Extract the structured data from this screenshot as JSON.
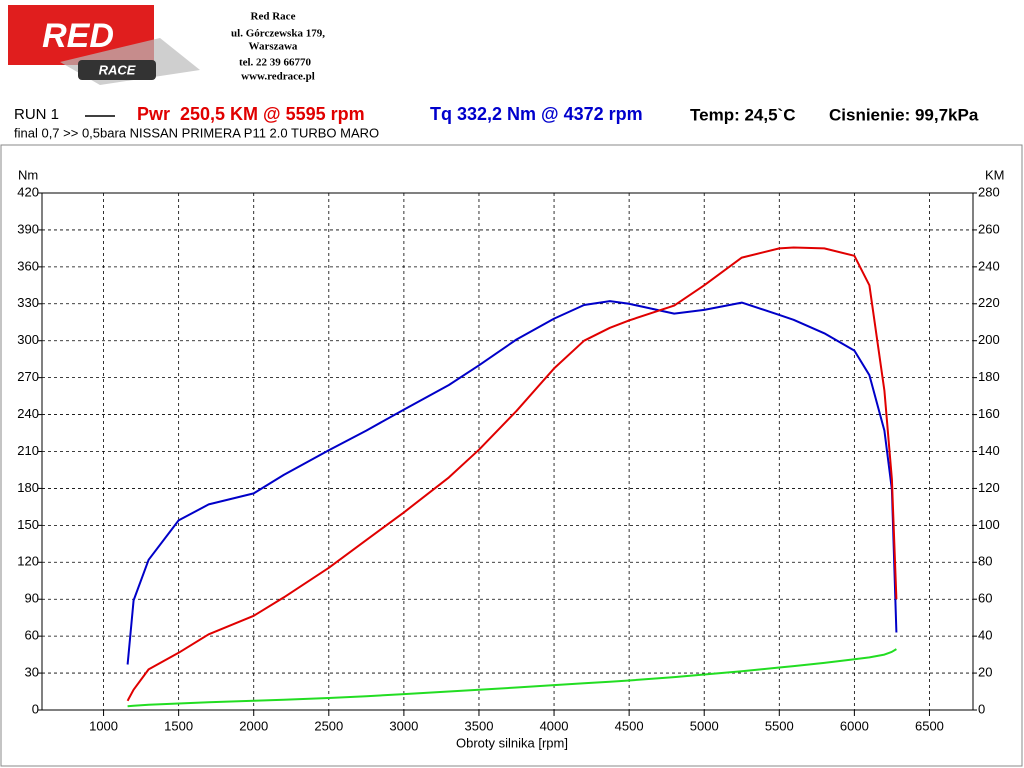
{
  "header": {
    "company": "Red Race",
    "address": "ul. Górczewska 179,",
    "city": "Warszawa",
    "phone": "tel. 22 39 66770",
    "web": "www.redrace.pl",
    "logo_top": "RED",
    "logo_bottom": "RACE"
  },
  "chart_data": {
    "type": "line",
    "run_label": "RUN 1",
    "power_label": "Pwr  250,5 KM @ 5595 rpm",
    "torque_label": "Tq 332,2 Nm @ 4372 rpm",
    "temp_label": "Temp: 24,5`C",
    "pressure_label": "Cisnienie: 99,7kPa",
    "subtitle": "final 0,7 >> 0,5bara NISSAN PRIMERA P11 2.0 TURBO MARO",
    "xlabel": "Obroty silnika [rpm]",
    "ylabel": "Nm",
    "y2label": "KM",
    "x": [
      1160,
      1200,
      1300,
      1500,
      1700,
      2000,
      2200,
      2500,
      2750,
      3000,
      3300,
      3500,
      3750,
      4000,
      4200,
      4372,
      4500,
      4800,
      5000,
      5250,
      5500,
      5595,
      5800,
      6000,
      6100,
      6200,
      6250,
      6280
    ],
    "series": [
      {
        "color": "#0000c8",
        "values": [
          37,
          89,
          122,
          154,
          167,
          176,
          191,
          211,
          227,
          244,
          264,
          280,
          301,
          318,
          329,
          332.2,
          330,
          322,
          325,
          331,
          321,
          317,
          306,
          292,
          272,
          227,
          179,
          63
        ]
      },
      {
        "color": "#e00000",
        "axis": "y2",
        "values": [
          5,
          11,
          22,
          31,
          41,
          51,
          61,
          77,
          92,
          107,
          126,
          141,
          162,
          185,
          200,
          207,
          211,
          219,
          230,
          245,
          250,
          250.5,
          250,
          246,
          230,
          173,
          125,
          60
        ]
      },
      {
        "color": "#22dd22",
        "axis": "y2",
        "values": [
          2,
          2.3,
          2.8,
          3.5,
          4.2,
          5,
          5.6,
          6.5,
          7.5,
          8.6,
          10,
          11,
          12.2,
          13.5,
          14.5,
          15.3,
          16,
          17.8,
          19.2,
          21,
          23,
          23.8,
          25.5,
          27.5,
          28.5,
          30,
          31.5,
          33
        ]
      }
    ],
    "xlim": [
      590,
      6790
    ],
    "ylim": [
      0,
      420
    ],
    "y2lim": [
      0,
      280
    ],
    "xticks": [
      1000,
      1500,
      2000,
      2500,
      3000,
      3500,
      4000,
      4500,
      5000,
      5500,
      6000,
      6500
    ],
    "yticks": [
      0,
      30,
      60,
      90,
      120,
      150,
      180,
      210,
      240,
      270,
      300,
      330,
      360,
      390,
      420
    ],
    "y2ticks": [
      0,
      20,
      40,
      60,
      80,
      100,
      120,
      140,
      160,
      180,
      200,
      220,
      240,
      260,
      280
    ],
    "grid": true
  }
}
